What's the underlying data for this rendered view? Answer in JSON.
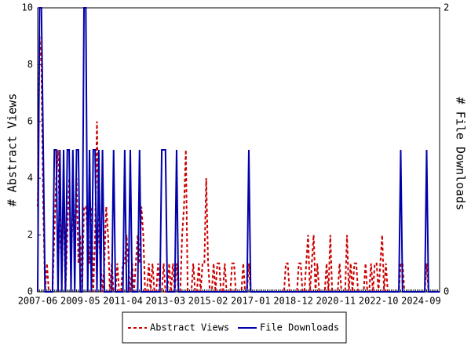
{
  "chart_data": {
    "type": "line",
    "y_label": "# Abstract Views",
    "y2_label": "# File Downloads",
    "categories": [
      "2007-06",
      null,
      null,
      null,
      null,
      null,
      null,
      null,
      null,
      null,
      null,
      null,
      null,
      null,
      null,
      null,
      null,
      null,
      null,
      null,
      null,
      null,
      null,
      "2009-05",
      null,
      null,
      null,
      null,
      null,
      null,
      null,
      null,
      null,
      null,
      null,
      null,
      null,
      null,
      null,
      null,
      null,
      null,
      null,
      null,
      null,
      null,
      "2011-04",
      null,
      null,
      null,
      null,
      null,
      null,
      null,
      null,
      null,
      null,
      null,
      null,
      null,
      null,
      null,
      null,
      null,
      null,
      null,
      null,
      null,
      null,
      "2013-03",
      null,
      null,
      null,
      null,
      null,
      null,
      null,
      null,
      null,
      null,
      null,
      null,
      null,
      null,
      null,
      null,
      null,
      null,
      null,
      null,
      null,
      null,
      "2015-02",
      null,
      null,
      null,
      null,
      null,
      null,
      null,
      null,
      null,
      null,
      null,
      null,
      null,
      null,
      null,
      null,
      null,
      null,
      null,
      null,
      null,
      null,
      "2017-01",
      null,
      null,
      null,
      null,
      null,
      null,
      null,
      null,
      null,
      null,
      null,
      null,
      null,
      null,
      null,
      null,
      null,
      null,
      null,
      null,
      null,
      null,
      "2018-12",
      null,
      null,
      null,
      null,
      null,
      null,
      null,
      null,
      null,
      null,
      null,
      null,
      null,
      null,
      null,
      null,
      null,
      null,
      null,
      null,
      null,
      null,
      "2020-11",
      null,
      null,
      null,
      null,
      null,
      null,
      null,
      null,
      null,
      null,
      null,
      null,
      null,
      null,
      null,
      null,
      null,
      null,
      null,
      null,
      null,
      null,
      "2022-10",
      null,
      null,
      null,
      null,
      null,
      null,
      null,
      null,
      null,
      null,
      null,
      null,
      null,
      null,
      null,
      null,
      null,
      null,
      null,
      null,
      null,
      null,
      "2024-09",
      null,
      null,
      null,
      null,
      null,
      null,
      null,
      null,
      null,
      null
    ],
    "series": [
      {
        "name": "Abstract Views",
        "color": "#cc0000",
        "line_style": "dashed",
        "axis": "y",
        "values": [
          3,
          9,
          8,
          3,
          0,
          1,
          0,
          0,
          0,
          2,
          4,
          5,
          2,
          1,
          3,
          0,
          2,
          4,
          1,
          3,
          2,
          4,
          1,
          2,
          0,
          3,
          3,
          2,
          1,
          3,
          0,
          2,
          6,
          2,
          1,
          0,
          1,
          3,
          2,
          0,
          1,
          0,
          0,
          1,
          0,
          0,
          1,
          1,
          2,
          1,
          0,
          1,
          0,
          1,
          2,
          1,
          3,
          2,
          0,
          0,
          1,
          0,
          1,
          0,
          0,
          1,
          0,
          0,
          1,
          0,
          0,
          1,
          0,
          1,
          0,
          1,
          0,
          0,
          2,
          3,
          5,
          0,
          0,
          0,
          1,
          0,
          0,
          1,
          0,
          1,
          1,
          4,
          1,
          0,
          0,
          1,
          0,
          1,
          1,
          0,
          0,
          1,
          0,
          0,
          0,
          1,
          1,
          0,
          0,
          0,
          0,
          1,
          0,
          0,
          1,
          0,
          0,
          0,
          0,
          0,
          0,
          0,
          0,
          0,
          0,
          0,
          0,
          0,
          0,
          0,
          0,
          0,
          0,
          0,
          1,
          1,
          0,
          0,
          0,
          0,
          0,
          1,
          1,
          0,
          0,
          1,
          2,
          0,
          1,
          2,
          0,
          1,
          0,
          0,
          0,
          0,
          1,
          0,
          2,
          0,
          0,
          0,
          0,
          1,
          0,
          0,
          0,
          2,
          0,
          1,
          0,
          1,
          1,
          0,
          0,
          0,
          0,
          1,
          0,
          0,
          1,
          0,
          1,
          1,
          0,
          1,
          2,
          0,
          1,
          0,
          0,
          0,
          0,
          0,
          0,
          0,
          1,
          1,
          0,
          0,
          0,
          0,
          0,
          0,
          0,
          0,
          0,
          0,
          0,
          0,
          1,
          0,
          0,
          0,
          0,
          0,
          0,
          0
        ]
      },
      {
        "name": "File Downloads",
        "color": "#0000aa",
        "line_style": "solid",
        "axis": "y2",
        "values": [
          0,
          2,
          2,
          1,
          0,
          0,
          0,
          0,
          0,
          1,
          1,
          0,
          1,
          0,
          1,
          0,
          1,
          1,
          0,
          1,
          0,
          1,
          1,
          0,
          0,
          2,
          2,
          0,
          1,
          0,
          1,
          1,
          0,
          1,
          0,
          1,
          0,
          0,
          0,
          0,
          0,
          1,
          0,
          0,
          0,
          0,
          0,
          1,
          0,
          0,
          1,
          0,
          0,
          0,
          0,
          1,
          0,
          0,
          0,
          0,
          0,
          0,
          0,
          0,
          0,
          0,
          0,
          1,
          1,
          1,
          0,
          0,
          0,
          0,
          0,
          1,
          0,
          0,
          0,
          0,
          0,
          0,
          0,
          0,
          0,
          0,
          0,
          0,
          0,
          0,
          0,
          0,
          0,
          0,
          0,
          0,
          0,
          0,
          0,
          0,
          0,
          0,
          0,
          0,
          0,
          0,
          0,
          0,
          0,
          0,
          0,
          0,
          0,
          0,
          1,
          0,
          0,
          0,
          0,
          0,
          0,
          0,
          0,
          0,
          0,
          0,
          0,
          0,
          0,
          0,
          0,
          0,
          0,
          0,
          0,
          0,
          0,
          0,
          0,
          0,
          0,
          0,
          0,
          0,
          0,
          0,
          0,
          0,
          0,
          0,
          0,
          0,
          0,
          0,
          0,
          0,
          0,
          0,
          0,
          0,
          0,
          0,
          0,
          0,
          0,
          0,
          0,
          0,
          0,
          0,
          0,
          0,
          0,
          0,
          0,
          0,
          0,
          0,
          0,
          0,
          0,
          0,
          0,
          0,
          0,
          0,
          0,
          0,
          0,
          0,
          0,
          0,
          0,
          0,
          0,
          0,
          1,
          0,
          0,
          0,
          0,
          0,
          0,
          0,
          0,
          0,
          0,
          0,
          0,
          0,
          1,
          0,
          0,
          0,
          0,
          0,
          0,
          0
        ]
      }
    ],
    "ylim": [
      0,
      10
    ],
    "yticks": [
      0,
      2,
      4,
      6,
      8,
      10
    ],
    "y2lim": [
      0,
      2
    ],
    "y2ticks": [
      0,
      2
    ],
    "legend": "bottom"
  }
}
